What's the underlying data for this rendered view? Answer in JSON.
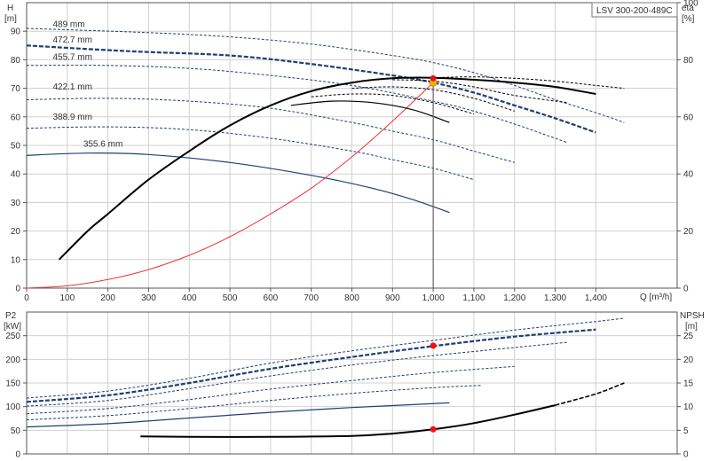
{
  "chart_data": [
    {
      "type": "line",
      "panel": "pump-curves",
      "title": "LSV 300-200-489C",
      "xlabel": "Q [m³/h]",
      "ylabel_left": [
        "H",
        "[m]"
      ],
      "ylabel_right": [
        "eta",
        "[%]"
      ],
      "xlim": [
        0,
        1600
      ],
      "ylim_left": [
        0,
        100
      ],
      "ylim_right": [
        0,
        100
      ],
      "x_ticks": [
        "0",
        "100",
        "200",
        "300",
        "400",
        "500",
        "600",
        "700",
        "800",
        "900",
        "1,000",
        "1,100",
        "1,200",
        "1,300",
        "1,400"
      ],
      "y_ticks_left": [
        "0",
        "10",
        "20",
        "30",
        "40",
        "50",
        "60",
        "70",
        "80",
        "90"
      ],
      "y_ticks_right": [
        "0",
        "20",
        "40",
        "60",
        "80",
        "100"
      ],
      "grid": true,
      "head_series": [
        {
          "name": "489 mm",
          "label_at": [
            25,
            91.5
          ],
          "style": "dashed-thin",
          "x": [
            0,
            300,
            500,
            700,
            900,
            1000,
            1100,
            1200,
            1300,
            1410,
            1470
          ],
          "y": [
            91,
            89.5,
            88,
            85.5,
            81.5,
            79,
            75.5,
            71,
            66,
            61,
            58
          ]
        },
        {
          "name": "472.7 mm",
          "label_at": [
            25,
            86
          ],
          "style": "dashed-bold",
          "x": [
            0,
            250,
            500,
            700,
            900,
            1000,
            1100,
            1200,
            1300,
            1400
          ],
          "y": [
            85,
            83,
            81.5,
            78.5,
            74.5,
            72,
            68.5,
            64,
            59.5,
            54.5
          ]
        },
        {
          "name": "455.7 mm",
          "label_at": [
            25,
            80
          ],
          "style": "dashed-thin",
          "x": [
            0,
            200,
            400,
            600,
            800,
            1000,
            1100,
            1200,
            1270,
            1330
          ],
          "y": [
            78,
            78,
            77,
            74.5,
            71,
            65.5,
            62,
            57.5,
            54,
            51
          ]
        },
        {
          "name": "422.1 mm",
          "label_at": [
            25,
            69.5
          ],
          "style": "dashed-thin",
          "x": [
            0,
            200,
            400,
            600,
            800,
            900,
            1000,
            1100,
            1200
          ],
          "y": [
            66,
            66.5,
            65.5,
            63,
            58,
            55,
            52,
            48,
            44
          ]
        },
        {
          "name": "388.9 mm",
          "label_at": [
            25,
            59
          ],
          "style": "dashed-thin",
          "x": [
            0,
            200,
            400,
            600,
            800,
            900,
            1000,
            1100
          ],
          "y": [
            56,
            56.5,
            55.5,
            52.5,
            48,
            45,
            42,
            38
          ]
        },
        {
          "name": "355.6 mm",
          "label_at": [
            100,
            49.5
          ],
          "style": "solid-thin",
          "x": [
            0,
            150,
            300,
            500,
            700,
            850,
            950,
            1040
          ],
          "y": [
            46.5,
            47.3,
            46.8,
            44,
            39.5,
            35,
            31,
            26.5
          ]
        }
      ],
      "system_curve": {
        "style": "red-thin",
        "x": [
          0,
          100,
          200,
          300,
          400,
          500,
          600,
          700,
          800,
          900,
          1000
        ],
        "y": [
          0,
          0.8,
          3,
          6.5,
          11.5,
          18,
          26,
          35,
          46,
          58.5,
          72
        ]
      },
      "eta_series": [
        {
          "style": "solid-bold",
          "x": [
            80,
            150,
            200,
            300,
            400,
            500,
            600,
            700,
            800,
            900,
            1000,
            1100,
            1200,
            1300,
            1400
          ],
          "y": [
            10,
            20,
            26,
            38,
            48,
            57,
            64,
            69,
            72,
            73.5,
            73.7,
            73,
            72,
            70.5,
            68
          ]
        },
        {
          "style": "dashed-thin",
          "x": [
            1000,
            1100,
            1200,
            1300,
            1400,
            1470
          ],
          "y": [
            73.7,
            74,
            73.5,
            72.5,
            71,
            70
          ]
        },
        {
          "style": "dashed-thin",
          "x": [
            900,
            1000,
            1100,
            1200,
            1330
          ],
          "y": [
            73,
            72.5,
            70.5,
            67.5,
            65
          ]
        },
        {
          "style": "dashed-thin",
          "x": [
            800,
            900,
            1000,
            1100,
            1200
          ],
          "y": [
            70,
            70.5,
            69.5,
            66.5,
            62
          ]
        },
        {
          "style": "dashed-thin",
          "x": [
            700,
            800,
            900,
            1000,
            1100
          ],
          "y": [
            67,
            68,
            67.5,
            65,
            61
          ]
        },
        {
          "style": "solid-thin",
          "x": [
            650,
            750,
            850,
            950,
            1040
          ],
          "y": [
            64,
            65.5,
            65,
            62.5,
            58
          ]
        }
      ],
      "duty_point": {
        "x": 1000,
        "head": 72,
        "eta": 73.5
      },
      "colors": {
        "curve": "#1f3f72",
        "eta": "#000000",
        "system": "#ee3333",
        "duty_head": "#f5b700",
        "duty_eta": "#ee1111"
      }
    },
    {
      "type": "line",
      "panel": "power-npsh",
      "ylabel_left": [
        "P2",
        "[kW]"
      ],
      "ylabel_right": [
        "NPSH",
        "[m]"
      ],
      "xlim": [
        0,
        1600
      ],
      "ylim_left": [
        0,
        300
      ],
      "ylim_right": [
        0,
        30
      ],
      "y_ticks_left": [
        "0",
        "50",
        "100",
        "150",
        "200",
        "250"
      ],
      "y_ticks_right": [
        "0",
        "5",
        "10",
        "15",
        "20",
        "25"
      ],
      "grid": true,
      "power_series": [
        {
          "style": "dashed-thin",
          "x": [
            0,
            200,
            400,
            600,
            800,
            1000,
            1200,
            1400,
            1470
          ],
          "y": [
            118,
            133,
            160,
            192,
            218,
            240,
            262,
            280,
            287
          ]
        },
        {
          "style": "dashed-bold",
          "x": [
            0,
            200,
            400,
            600,
            800,
            1000,
            1200,
            1400
          ],
          "y": [
            110,
            124,
            150,
            180,
            205,
            228,
            248,
            263
          ]
        },
        {
          "style": "dashed-thin",
          "x": [
            0,
            200,
            400,
            600,
            800,
            1000,
            1200,
            1330
          ],
          "y": [
            101,
            113,
            138,
            165,
            188,
            208,
            225,
            236
          ]
        },
        {
          "style": "dashed-thin",
          "x": [
            0,
            200,
            400,
            600,
            800,
            1000,
            1200
          ],
          "y": [
            85,
            96,
            115,
            137,
            155,
            172,
            185
          ]
        },
        {
          "style": "dashed-thin",
          "x": [
            0,
            200,
            400,
            600,
            800,
            1000,
            1120
          ],
          "y": [
            72,
            81,
            96,
            113,
            128,
            140,
            145
          ]
        },
        {
          "style": "solid-thin",
          "x": [
            0,
            200,
            400,
            600,
            800,
            1040
          ],
          "y": [
            57,
            64,
            76,
            88,
            98,
            108
          ]
        }
      ],
      "npsh_curve": {
        "style": "solid-bold",
        "x": [
          280,
          400,
          600,
          800,
          900,
          1000,
          1100,
          1200,
          1300,
          1400,
          1470
        ],
        "y": [
          3.7,
          3.6,
          3.6,
          3.8,
          4.3,
          5.2,
          6.5,
          8.3,
          10.3,
          12.7,
          15
        ]
      },
      "duty_point": {
        "x": 1000,
        "power": 229,
        "npsh": 5.2
      }
    }
  ]
}
